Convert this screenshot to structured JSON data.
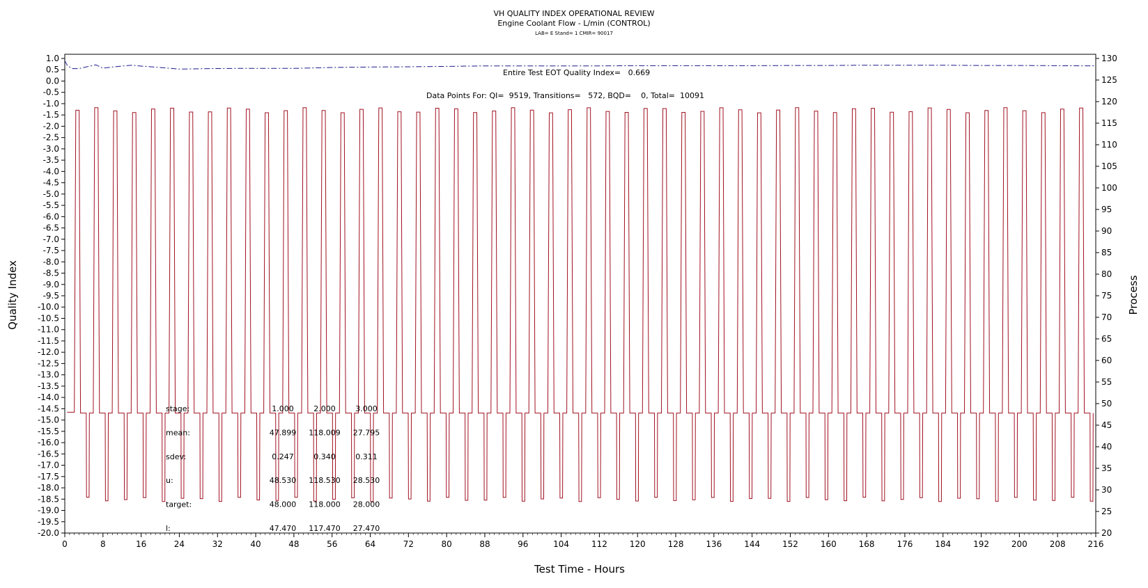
{
  "chart_data": {
    "type": "line",
    "title": "VH QUALITY INDEX OPERATIONAL REVIEW",
    "subtitle": "Engine Coolant Flow - L/min (CONTROL)",
    "sub_subtitle": "LAB= E Stand= 1 CMIR= 90017",
    "xlabel": "Test Time - Hours",
    "ylabel": "Quality Index",
    "y2label": "Process",
    "xlim": [
      0,
      216
    ],
    "ylim": [
      -20.0,
      1.0
    ],
    "y2lim": [
      20,
      130
    ],
    "x_ticks": [
      "0",
      "8",
      "16",
      "24",
      "32",
      "40",
      "48",
      "56",
      "64",
      "72",
      "80",
      "88",
      "96",
      "104",
      "112",
      "120",
      "128",
      "136",
      "144",
      "152",
      "160",
      "168",
      "176",
      "184",
      "192",
      "200",
      "208",
      "216"
    ],
    "y_ticks": [
      "1.0",
      "0.5",
      "0.0",
      "-0.5",
      "-1.0",
      "-1.5",
      "-2.0",
      "-2.5",
      "-3.0",
      "-3.5",
      "-4.0",
      "-4.5",
      "-5.0",
      "-5.5",
      "-6.0",
      "-6.5",
      "-7.0",
      "-7.5",
      "-8.0",
      "-8.5",
      "-9.0",
      "-9.5",
      "-10.0",
      "-10.5",
      "-11.0",
      "-11.5",
      "-12.0",
      "-12.5",
      "-13.0",
      "-13.5",
      "-14.0",
      "-14.5",
      "-15.0",
      "-15.5",
      "-16.0",
      "-16.5",
      "-17.0",
      "-17.5",
      "-18.0",
      "-18.5",
      "-19.0",
      "-19.5",
      "-20.0"
    ],
    "y2_ticks": [
      "130",
      "125",
      "120",
      "115",
      "110",
      "105",
      "100",
      "95",
      "90",
      "85",
      "80",
      "75",
      "70",
      "65",
      "60",
      "55",
      "50",
      "45",
      "40",
      "35",
      "30",
      "25",
      "20"
    ],
    "annotation_qi": "Entire Test EOT Quality Index=   0.669",
    "annotation_points": "Data Points For: QI=  9519, Transitions=   572, BQD=    0, Total=  10091",
    "stats_table": [
      {
        "label": "stage:",
        "values": [
          "1.000",
          "2.000",
          "3.000"
        ]
      },
      {
        "label": "mean:",
        "values": [
          "47.899",
          "118.009",
          "27.795"
        ]
      },
      {
        "label": "sdev:",
        "values": [
          "0.247",
          "0.340",
          "0.311"
        ]
      },
      {
        "label": "u:",
        "values": [
          "48.530",
          "118.530",
          "28.530"
        ]
      },
      {
        "label": "target:",
        "values": [
          "48.000",
          "118.000",
          "28.000"
        ]
      },
      {
        "label": "l:",
        "values": [
          "47.470",
          "117.470",
          "27.470"
        ]
      }
    ],
    "series": [
      {
        "axis": "left",
        "color": "#1a1a8c",
        "style": "dash-dot",
        "x": [
          0,
          0.5,
          1.5,
          3,
          5,
          6.5,
          8,
          10,
          14,
          16,
          20,
          24,
          30,
          36,
          40,
          48,
          56,
          64,
          72,
          80,
          88,
          96,
          104,
          112,
          120,
          128,
          136,
          144,
          152,
          160,
          168,
          176,
          184,
          192,
          200,
          208,
          216
        ],
        "y": [
          0.9,
          0.7,
          0.55,
          0.55,
          0.65,
          0.72,
          0.57,
          0.62,
          0.7,
          0.66,
          0.6,
          0.53,
          0.55,
          0.56,
          0.56,
          0.56,
          0.6,
          0.62,
          0.63,
          0.65,
          0.67,
          0.67,
          0.67,
          0.67,
          0.68,
          0.68,
          0.68,
          0.68,
          0.69,
          0.69,
          0.7,
          0.7,
          0.7,
          0.69,
          0.69,
          0.68,
          0.67
        ]
      },
      {
        "axis": "right",
        "name": "Process",
        "color": "#a01020",
        "cycle": {
          "start_level": 48.0,
          "high_level": 118.0,
          "mid_level": 47.8,
          "low_level": 27.8,
          "start_hours": 0.5,
          "first_rise_hours": 2.0,
          "period_hours": 3.968,
          "rise_hours": 0.3,
          "high_duration_hours": 0.7,
          "fall_hours": 0.3,
          "mid_duration_hours": 1.2,
          "low_duration_hours": 0.55,
          "cycles": 54
        }
      }
    ]
  }
}
